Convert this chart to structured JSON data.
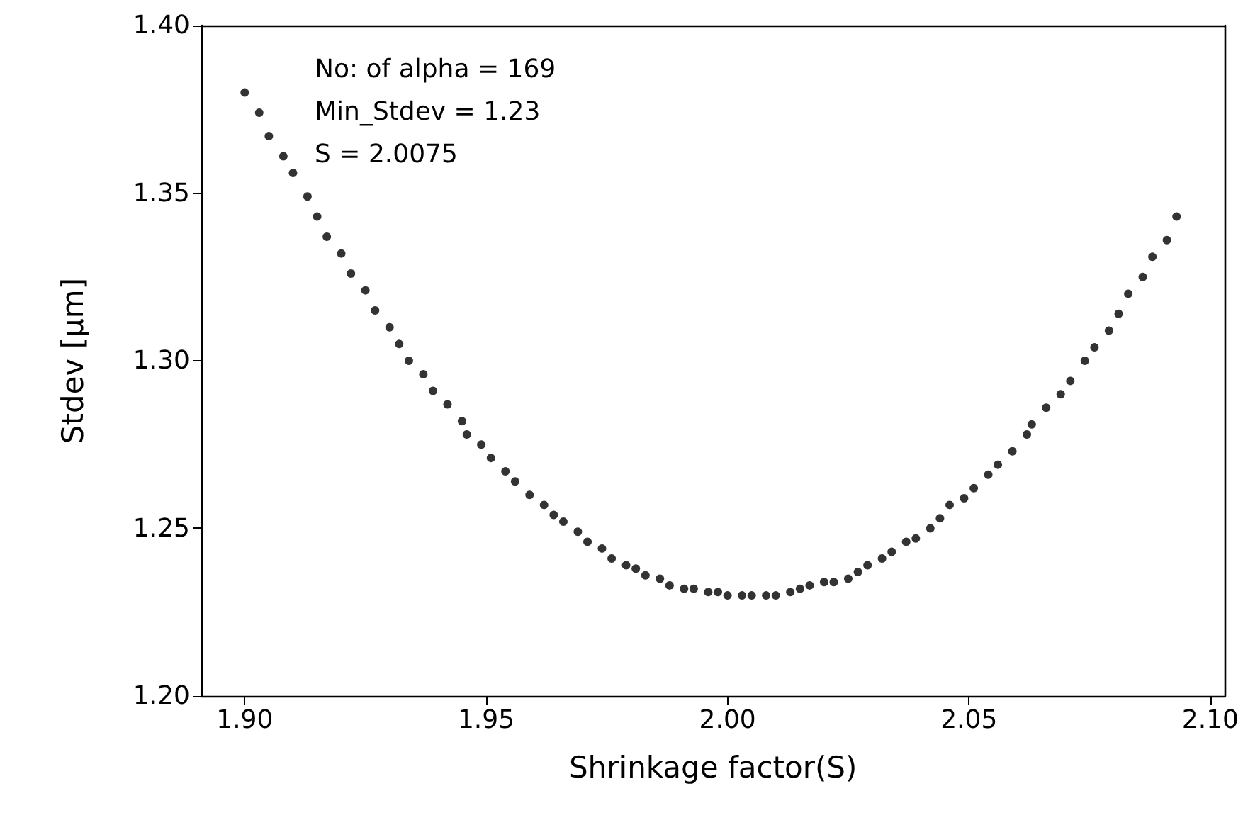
{
  "chart_data": {
    "type": "scatter",
    "xlabel": "Shrinkage factor(S)",
    "ylabel": "Stdev [µm]",
    "annotations": [
      "No: of alpha = 169",
      "Min_Stdev = 1.23",
      "S = 2.0075"
    ],
    "x": [
      1.9,
      1.903,
      1.905,
      1.908,
      1.91,
      1.913,
      1.915,
      1.917,
      1.92,
      1.922,
      1.925,
      1.927,
      1.93,
      1.932,
      1.934,
      1.937,
      1.939,
      1.942,
      1.945,
      1.946,
      1.949,
      1.951,
      1.954,
      1.956,
      1.959,
      1.962,
      1.964,
      1.966,
      1.969,
      1.971,
      1.974,
      1.976,
      1.979,
      1.981,
      1.983,
      1.986,
      1.988,
      1.991,
      1.993,
      1.996,
      1.998,
      2.0,
      2.003,
      2.005,
      2.008,
      2.01,
      2.013,
      2.015,
      2.017,
      2.02,
      2.022,
      2.025,
      2.027,
      2.029,
      2.032,
      2.034,
      2.037,
      2.039,
      2.042,
      2.044,
      2.046,
      2.049,
      2.051,
      2.054,
      2.056,
      2.059,
      2.062,
      2.063,
      2.066,
      2.069,
      2.071,
      2.074,
      2.076,
      2.079,
      2.081,
      2.083,
      2.086,
      2.088,
      2.091,
      2.093
    ],
    "values": [
      1.38,
      1.374,
      1.367,
      1.361,
      1.356,
      1.349,
      1.343,
      1.337,
      1.332,
      1.326,
      1.321,
      1.315,
      1.31,
      1.305,
      1.3,
      1.296,
      1.291,
      1.287,
      1.282,
      1.278,
      1.275,
      1.271,
      1.267,
      1.264,
      1.26,
      1.257,
      1.254,
      1.252,
      1.249,
      1.246,
      1.244,
      1.241,
      1.239,
      1.238,
      1.236,
      1.235,
      1.233,
      1.232,
      1.232,
      1.231,
      1.231,
      1.23,
      1.23,
      1.23,
      1.23,
      1.23,
      1.231,
      1.232,
      1.233,
      1.234,
      1.234,
      1.235,
      1.237,
      1.239,
      1.241,
      1.243,
      1.246,
      1.247,
      1.25,
      1.253,
      1.257,
      1.259,
      1.262,
      1.266,
      1.269,
      1.273,
      1.278,
      1.281,
      1.286,
      1.29,
      1.294,
      1.3,
      1.304,
      1.309,
      1.314,
      1.32,
      1.325,
      1.331,
      1.336,
      1.343
    ],
    "color": "#000000",
    "marker": "circle",
    "xlim": [
      1.891,
      2.103
    ],
    "xticks": [
      {
        "value": 1.9,
        "label": "1.90"
      },
      {
        "value": 1.95,
        "label": "1.95"
      },
      {
        "value": 2.0,
        "label": "2.00"
      },
      {
        "value": 2.05,
        "label": "2.05"
      },
      {
        "value": 2.1,
        "label": "2.10"
      }
    ],
    "ylim": [
      1.2,
      1.4
    ],
    "yticks": [
      {
        "value": 1.2,
        "label": "1.20"
      },
      {
        "value": 1.25,
        "label": "1.25"
      },
      {
        "value": 1.3,
        "label": "1.30"
      },
      {
        "value": 1.35,
        "label": "1.35"
      },
      {
        "value": 1.4,
        "label": "1.40"
      }
    ],
    "grid": false
  }
}
